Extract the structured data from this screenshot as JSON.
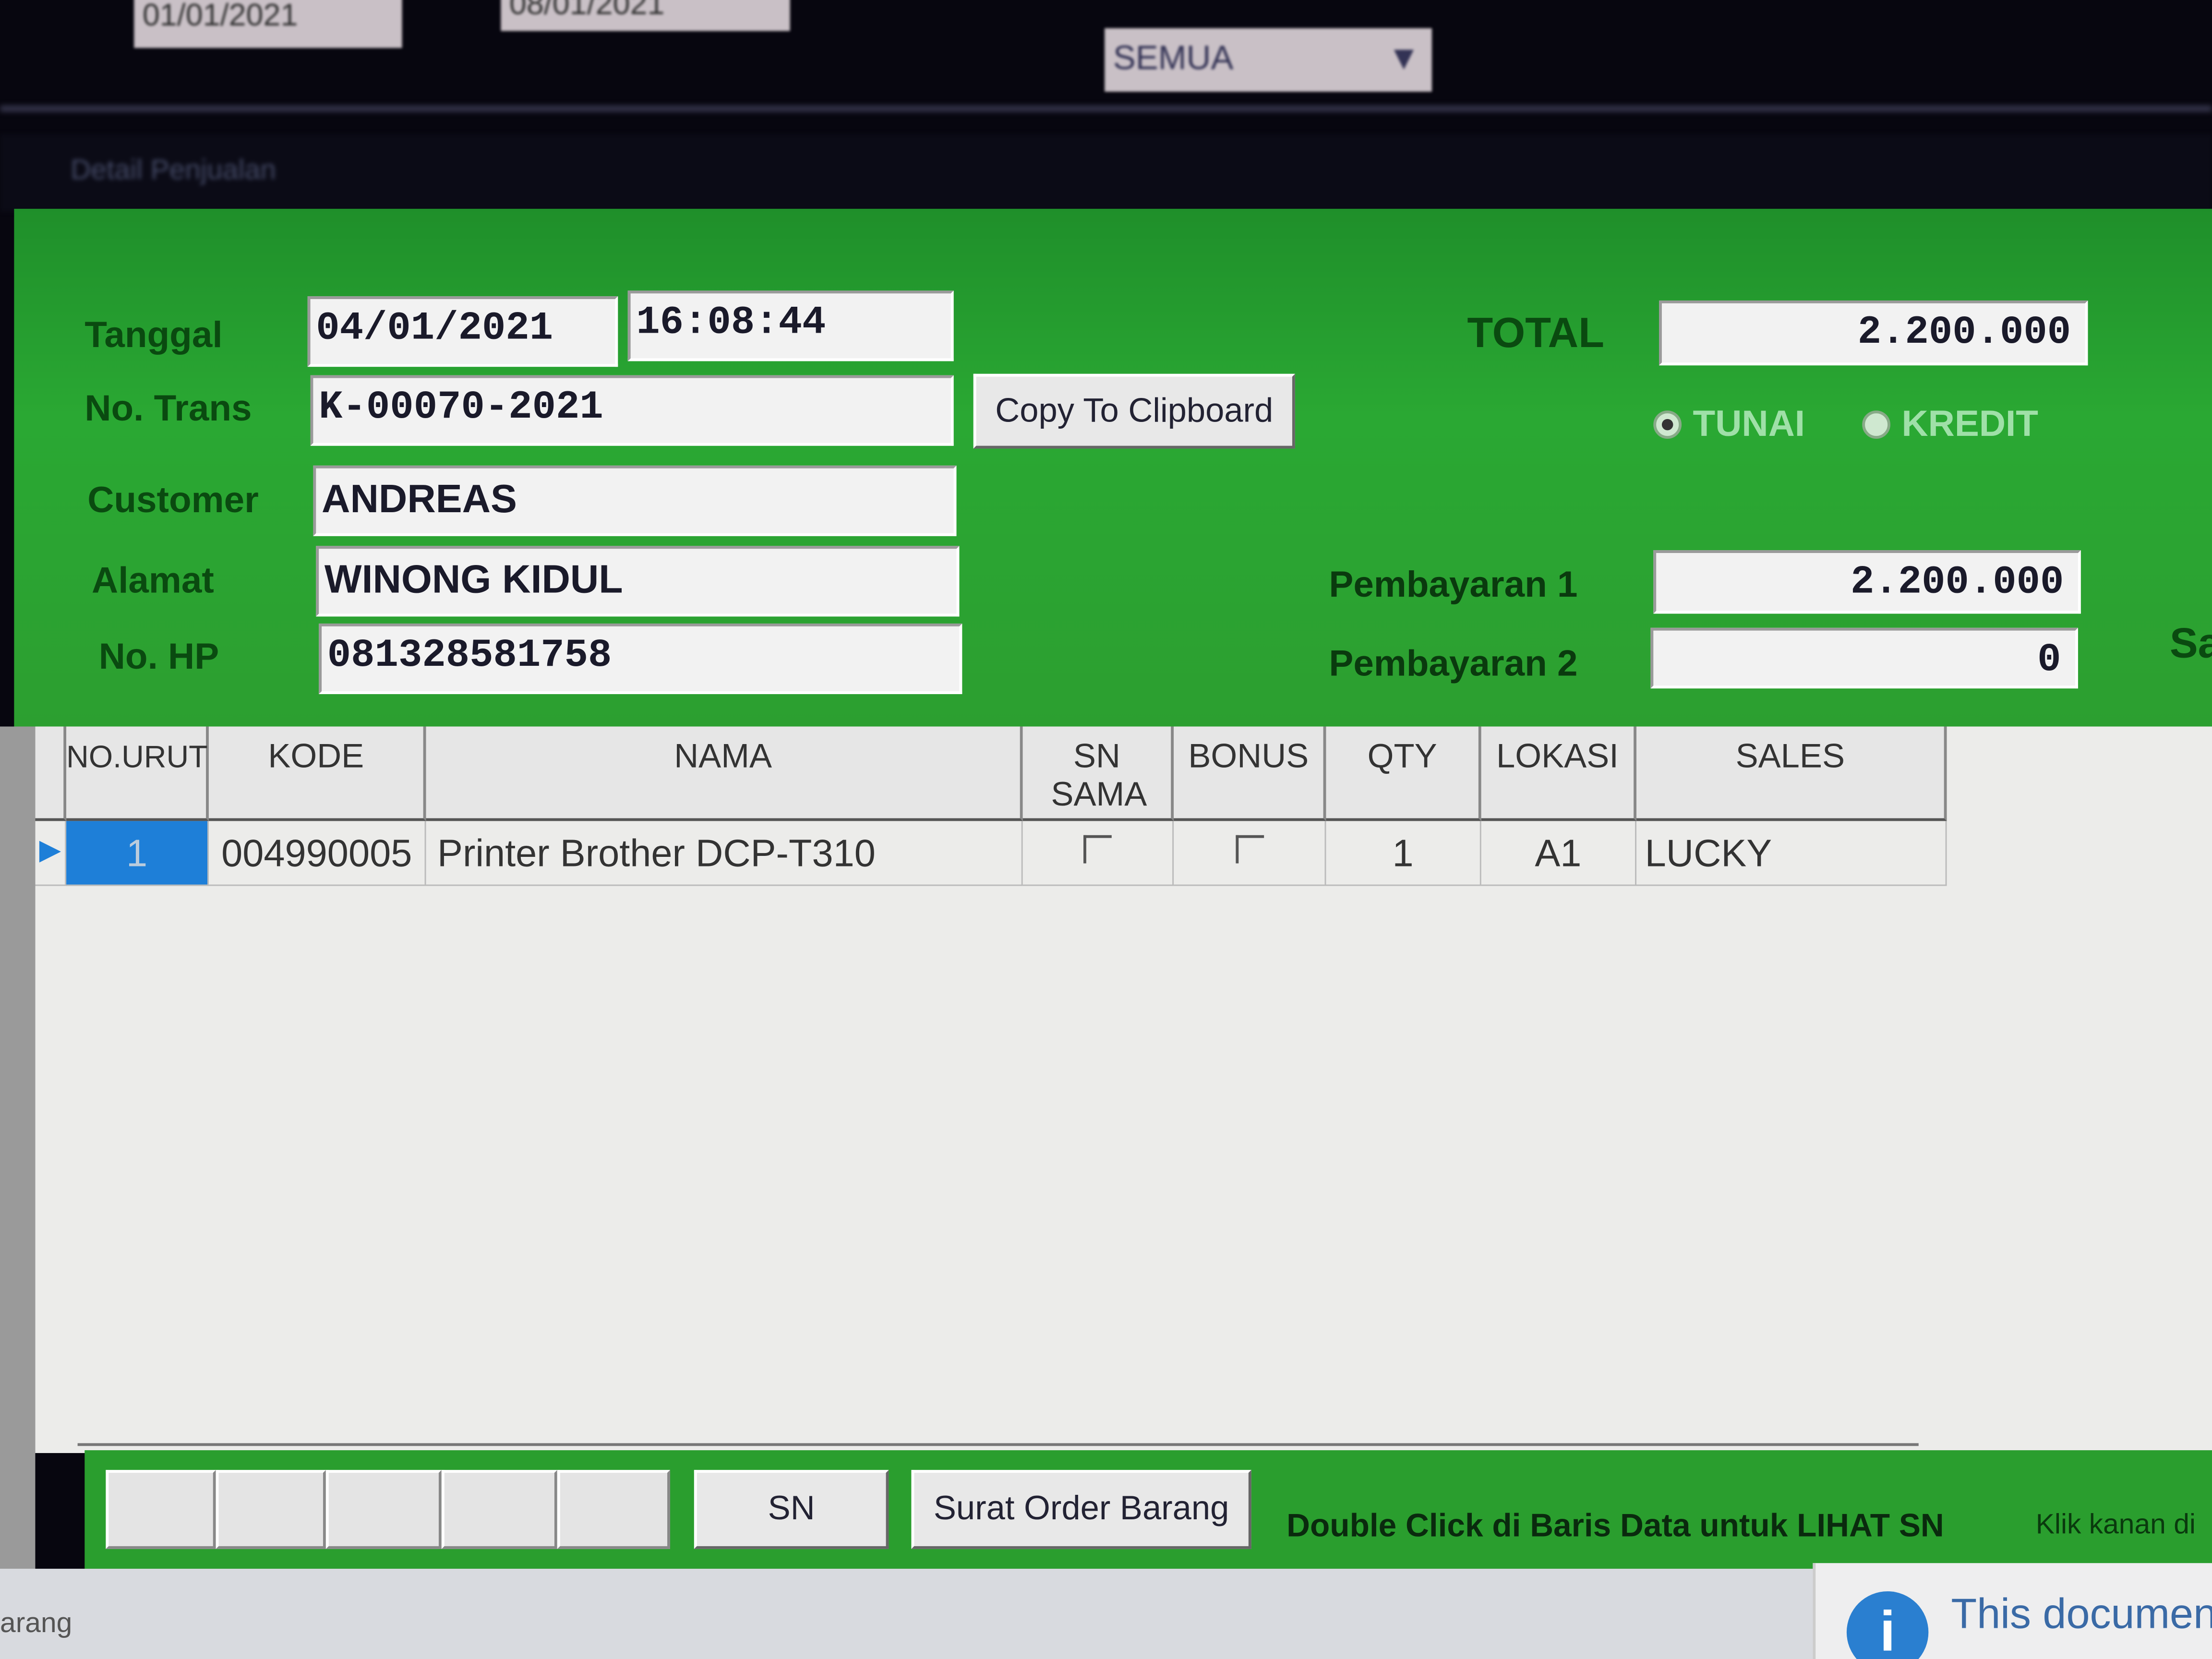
{
  "topbar": {
    "date_from": "01/01/2021",
    "date_to": "08/01/2021",
    "filter_value": "SEMUA"
  },
  "window": {
    "title": "Detail Penjualan"
  },
  "form": {
    "tanggal_label": "Tanggal",
    "tanggal_value": "04/01/2021",
    "time_value": "16:08:44",
    "no_trans_label": "No. Trans",
    "no_trans_value": "K-00070-2021",
    "copy_button": "Copy To Clipboard",
    "customer_label": "Customer",
    "customer_value": "ANDREAS",
    "alamat_label": "Alamat",
    "alamat_value": "WINONG KIDUL",
    "hp_label": "No. HP",
    "hp_value": "081328581758",
    "total_label": "TOTAL",
    "total_value": "2.200.000",
    "payment_type": {
      "tunai": "TUNAI",
      "kredit": "KREDIT",
      "selected": "TUNAI"
    },
    "pembayaran1_label": "Pembayaran 1",
    "pembayaran1_value": "2.200.000",
    "pembayaran2_label": "Pembayaran 2",
    "pembayaran2_value": "0",
    "cut_label": "Sa"
  },
  "grid": {
    "columns": [
      "NO.URUT",
      "KODE",
      "NAMA",
      "SN SAMA",
      "BONUS",
      "QTY",
      "LOKASI",
      "SALES"
    ],
    "rows": [
      {
        "no": "1",
        "kode": "004990005",
        "nama": "Printer Brother DCP-T310",
        "sn_sama": false,
        "bonus": false,
        "qty": "1",
        "lokasi": "A1",
        "sales": "LUCKY"
      }
    ]
  },
  "footer": {
    "sn_button": "SN",
    "surat_button": "Surat Order Barang",
    "hint": "Double Click di Baris Data untuk LIHAT SN",
    "hint2": "Klik kanan di"
  },
  "taskbar": {
    "left_text": "arang",
    "notification": "This documen"
  },
  "colors": {
    "panel_green": "#2aa833",
    "selected_row": "#1e7fd8"
  }
}
